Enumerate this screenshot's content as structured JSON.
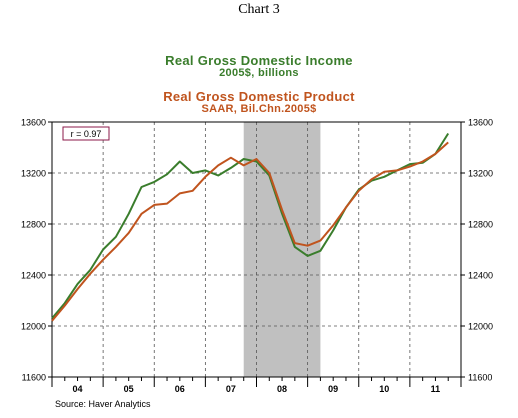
{
  "page": {
    "chart_number": "Chart 3",
    "source": "Source: Haver Analytics"
  },
  "colors": {
    "income": "#3a7d2c",
    "product": "#c0541e",
    "recession": "#c0c0c0",
    "axis": "#000000",
    "grid": "#555555"
  },
  "chart_data": {
    "type": "line",
    "titles": [
      {
        "text": "Real Gross Domestic Income",
        "series": "income"
      },
      {
        "text": "2005$, billions",
        "series": "income"
      },
      {
        "text": "Real Gross Domestic Product",
        "series": "product"
      },
      {
        "text": "SAAR, Bil.Chn.2005$",
        "series": "product"
      }
    ],
    "annotation": "r = 0.97",
    "x_tick_labels": [
      "04",
      "05",
      "06",
      "07",
      "08",
      "09",
      "10",
      "11"
    ],
    "x_range": [
      2004.0,
      2012.0
    ],
    "y_left": {
      "ylim": [
        11600,
        13600
      ],
      "ticks": [
        11600,
        12000,
        12400,
        12800,
        13200,
        13600
      ]
    },
    "y_right": {
      "ylim": [
        11600,
        13600
      ],
      "ticks": [
        11600,
        12000,
        12400,
        12800,
        13200,
        13600
      ]
    },
    "shaded_period": [
      2007.75,
      2009.25
    ],
    "grid": true,
    "series": [
      {
        "name": "Real Gross Domestic Income",
        "key": "income",
        "x": [
          2004.0,
          2004.25,
          2004.5,
          2004.75,
          2005.0,
          2005.25,
          2005.5,
          2005.75,
          2006.0,
          2006.25,
          2006.5,
          2006.75,
          2007.0,
          2007.25,
          2007.5,
          2007.75,
          2008.0,
          2008.25,
          2008.5,
          2008.75,
          2009.0,
          2009.25,
          2009.5,
          2009.75,
          2010.0,
          2010.25,
          2010.5,
          2010.75,
          2011.0,
          2011.25,
          2011.5,
          2011.75
        ],
        "values": [
          12060,
          12180,
          12330,
          12440,
          12600,
          12700,
          12880,
          13090,
          13130,
          13190,
          13290,
          13200,
          13220,
          13180,
          13240,
          13310,
          13290,
          13180,
          12880,
          12620,
          12550,
          12590,
          12750,
          12930,
          13070,
          13140,
          13170,
          13220,
          13270,
          13280,
          13350,
          13510
        ]
      },
      {
        "name": "Real Gross Domestic Product",
        "key": "product",
        "x": [
          2004.0,
          2004.25,
          2004.5,
          2004.75,
          2005.0,
          2005.25,
          2005.5,
          2005.75,
          2006.0,
          2006.25,
          2006.5,
          2006.75,
          2007.0,
          2007.25,
          2007.5,
          2007.75,
          2008.0,
          2008.25,
          2008.5,
          2008.75,
          2009.0,
          2009.25,
          2009.5,
          2009.75,
          2010.0,
          2010.25,
          2010.5,
          2010.75,
          2011.0,
          2011.25,
          2011.5,
          2011.75
        ],
        "values": [
          12040,
          12160,
          12290,
          12410,
          12520,
          12620,
          12730,
          12880,
          12950,
          12960,
          13040,
          13060,
          13170,
          13260,
          13320,
          13260,
          13310,
          13200,
          12910,
          12650,
          12630,
          12670,
          12790,
          12930,
          13060,
          13150,
          13210,
          13220,
          13250,
          13290,
          13350,
          13440
        ]
      }
    ]
  }
}
